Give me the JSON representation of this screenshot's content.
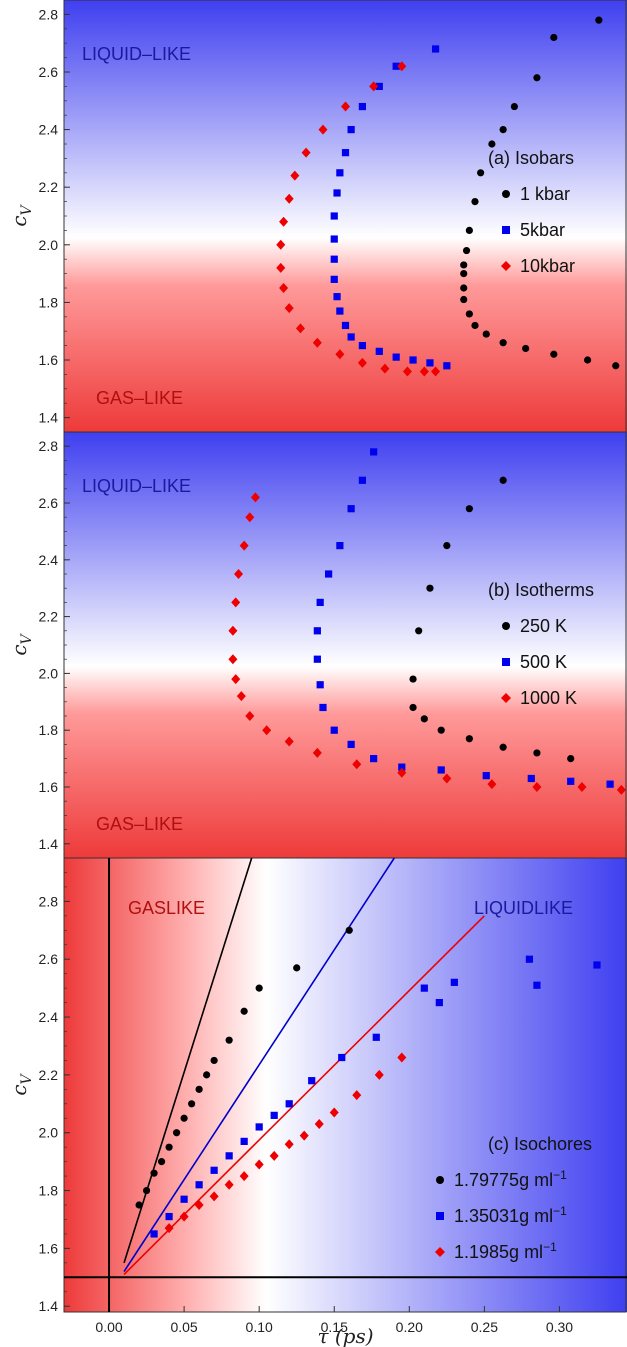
{
  "chart_data": [
    {
      "id": "a",
      "type": "scatter",
      "ylabel_main": "c",
      "ylabel_sub": "V",
      "ylim": [
        1.35,
        2.85
      ],
      "xlim": [
        0,
        1
      ],
      "yticks": [
        "1.4",
        "1.6",
        "1.8",
        "2.0",
        "2.2",
        "2.4",
        "2.6",
        "2.8"
      ],
      "background": "liquid-top",
      "regions": {
        "top": "LIQUID–LIKE",
        "bottom": "GAS–LIKE"
      },
      "legend_title": "(a) Isobars",
      "series": [
        {
          "name": "1 kbar",
          "marker": "circle",
          "color": "#000000",
          "x": [
            0.95,
            0.87,
            0.84,
            0.8,
            0.78,
            0.76,
            0.74,
            0.73,
            0.72,
            0.715,
            0.71,
            0.71,
            0.71,
            0.71,
            0.72,
            0.73,
            0.75,
            0.78,
            0.82,
            0.87,
            0.93,
            0.98
          ],
          "y": [
            2.78,
            2.72,
            2.58,
            2.48,
            2.4,
            2.35,
            2.25,
            2.15,
            2.05,
            1.98,
            1.93,
            1.9,
            1.85,
            1.81,
            1.76,
            1.72,
            1.69,
            1.66,
            1.64,
            1.62,
            1.6,
            1.58
          ]
        },
        {
          "name": "5kbar",
          "marker": "square",
          "color": "#0000ee",
          "x": [
            0.66,
            0.59,
            0.56,
            0.53,
            0.51,
            0.5,
            0.49,
            0.485,
            0.48,
            0.48,
            0.48,
            0.48,
            0.485,
            0.49,
            0.5,
            0.51,
            0.53,
            0.56,
            0.59,
            0.62,
            0.65,
            0.68
          ],
          "y": [
            2.68,
            2.62,
            2.55,
            2.48,
            2.4,
            2.32,
            2.25,
            2.18,
            2.1,
            2.02,
            1.95,
            1.88,
            1.82,
            1.77,
            1.72,
            1.68,
            1.65,
            1.63,
            1.61,
            1.6,
            1.59,
            1.58
          ]
        },
        {
          "name": "10kbar",
          "marker": "diamond",
          "color": "#ee0000",
          "x": [
            0.6,
            0.55,
            0.5,
            0.46,
            0.43,
            0.41,
            0.4,
            0.39,
            0.385,
            0.385,
            0.39,
            0.4,
            0.42,
            0.45,
            0.49,
            0.53,
            0.57,
            0.61,
            0.64,
            0.66
          ],
          "y": [
            2.62,
            2.55,
            2.48,
            2.4,
            2.32,
            2.24,
            2.16,
            2.08,
            2.0,
            1.92,
            1.85,
            1.78,
            1.71,
            1.66,
            1.62,
            1.59,
            1.57,
            1.56,
            1.56,
            1.56
          ]
        }
      ]
    },
    {
      "id": "b",
      "type": "scatter",
      "ylabel_main": "c",
      "ylabel_sub": "V",
      "ylim": [
        1.35,
        2.85
      ],
      "xlim": [
        0,
        1
      ],
      "yticks": [
        "1.4",
        "1.6",
        "1.8",
        "2.0",
        "2.2",
        "2.4",
        "2.6",
        "2.8"
      ],
      "background": "liquid-top",
      "regions": {
        "top": "LIQUID–LIKE",
        "bottom": "GAS–LIKE"
      },
      "legend_title": "(b) Isotherms",
      "series": [
        {
          "name": "250 K",
          "marker": "circle",
          "color": "#000000",
          "x": [
            0.78,
            0.72,
            0.68,
            0.65,
            0.63,
            0.62,
            0.62,
            0.64,
            0.67,
            0.72,
            0.78,
            0.84,
            0.9
          ],
          "y": [
            2.68,
            2.58,
            2.45,
            2.3,
            2.15,
            1.98,
            1.88,
            1.84,
            1.8,
            1.77,
            1.74,
            1.72,
            1.7
          ]
        },
        {
          "name": "500 K",
          "marker": "square",
          "color": "#0000ee",
          "x": [
            0.55,
            0.53,
            0.51,
            0.49,
            0.47,
            0.455,
            0.45,
            0.45,
            0.455,
            0.46,
            0.48,
            0.51,
            0.55,
            0.6,
            0.67,
            0.75,
            0.83,
            0.9,
            0.97
          ],
          "y": [
            2.78,
            2.68,
            2.58,
            2.45,
            2.35,
            2.25,
            2.15,
            2.05,
            1.96,
            1.88,
            1.8,
            1.75,
            1.7,
            1.67,
            1.66,
            1.64,
            1.63,
            1.62,
            1.61
          ]
        },
        {
          "name": "1000 K",
          "marker": "diamond",
          "color": "#ee0000",
          "x": [
            0.34,
            0.33,
            0.32,
            0.31,
            0.305,
            0.3,
            0.3,
            0.305,
            0.315,
            0.33,
            0.36,
            0.4,
            0.45,
            0.52,
            0.6,
            0.68,
            0.76,
            0.84,
            0.92,
            0.99
          ],
          "y": [
            2.62,
            2.55,
            2.45,
            2.35,
            2.25,
            2.15,
            2.05,
            1.98,
            1.92,
            1.85,
            1.8,
            1.76,
            1.72,
            1.68,
            1.65,
            1.63,
            1.61,
            1.6,
            1.6,
            1.59
          ]
        }
      ]
    },
    {
      "id": "c",
      "type": "scatter",
      "ylabel_main": "c",
      "ylabel_sub": "V",
      "xlabel": "τ (ps)",
      "ylim": [
        1.38,
        2.95
      ],
      "xlim": [
        -0.03,
        0.345
      ],
      "yticks": [
        "1.4",
        "1.6",
        "1.8",
        "2.0",
        "2.2",
        "2.4",
        "2.6",
        "2.8"
      ],
      "xticks": [
        "0.00",
        "0.05",
        "0.10",
        "0.15",
        "0.20",
        "0.25",
        "0.30"
      ],
      "background": "gas-left",
      "regions": {
        "left": "GASLIKE",
        "right": "LIQUIDLIKE"
      },
      "legend_title": "(c) Isochores",
      "series": [
        {
          "name": "1.79775g ml",
          "unit_sup": "−1",
          "marker": "circle",
          "color": "#000000",
          "x": [
            0.02,
            0.025,
            0.03,
            0.035,
            0.04,
            0.045,
            0.05,
            0.055,
            0.06,
            0.065,
            0.07,
            0.08,
            0.09,
            0.1,
            0.125,
            0.16
          ],
          "y": [
            1.75,
            1.8,
            1.86,
            1.9,
            1.95,
            2.0,
            2.05,
            2.1,
            2.15,
            2.2,
            2.25,
            2.32,
            2.42,
            2.5,
            2.57,
            2.7
          ]
        },
        {
          "name": "1.35031g ml",
          "unit_sup": "−1",
          "marker": "square",
          "color": "#0000ee",
          "x": [
            0.03,
            0.04,
            0.05,
            0.06,
            0.07,
            0.08,
            0.09,
            0.1,
            0.11,
            0.12,
            0.135,
            0.155,
            0.178,
            0.21,
            0.22,
            0.23,
            0.28,
            0.285,
            0.325
          ],
          "y": [
            1.65,
            1.71,
            1.77,
            1.82,
            1.87,
            1.92,
            1.97,
            2.02,
            2.06,
            2.1,
            2.18,
            2.26,
            2.33,
            2.5,
            2.45,
            2.52,
            2.6,
            2.51,
            2.58
          ]
        },
        {
          "name": "1.1985g ml",
          "unit_sup": "−1",
          "marker": "diamond",
          "color": "#ee0000",
          "x": [
            0.04,
            0.05,
            0.06,
            0.07,
            0.08,
            0.09,
            0.1,
            0.11,
            0.12,
            0.13,
            0.14,
            0.15,
            0.165,
            0.18,
            0.195
          ],
          "y": [
            1.67,
            1.71,
            1.75,
            1.78,
            1.82,
            1.85,
            1.89,
            1.92,
            1.96,
            1.99,
            2.03,
            2.07,
            2.13,
            2.2,
            2.26
          ]
        }
      ],
      "fit_lines": [
        {
          "color": "#000000",
          "x": [
            0.01,
            0.095
          ],
          "y": [
            1.55,
            2.95
          ]
        },
        {
          "color": "#0000cc",
          "x": [
            0.01,
            0.19
          ],
          "y": [
            1.52,
            2.95
          ]
        },
        {
          "color": "#ee0000",
          "x": [
            0.01,
            0.25
          ],
          "y": [
            1.51,
            2.75
          ]
        }
      ],
      "ref_lines": {
        "hline_y": 1.5,
        "vline_x": 0.0
      }
    }
  ]
}
